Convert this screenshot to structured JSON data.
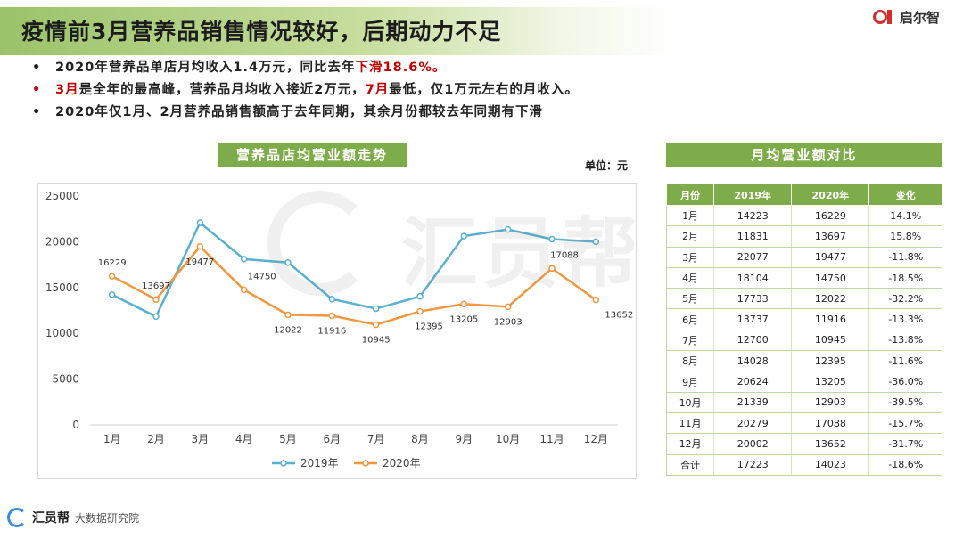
{
  "header": {
    "title": "疫情前3月营养品销售情况较好，后期动力不足",
    "logo_text": "启尔智"
  },
  "bullets": [
    {
      "parts": [
        {
          "text": "2020年营养品单店月均收入1.4万元，同比去年",
          "red": false
        },
        {
          "text": "下滑18.6%。",
          "red": true
        }
      ],
      "dot_red": false
    },
    {
      "parts": [
        {
          "text": "3月",
          "red": true
        },
        {
          "text": "是全年的最高峰，营养品月均收入接近2万元，",
          "red": false
        },
        {
          "text": "7月",
          "red": true
        },
        {
          "text": "最低，仅1万元左右的月收入。",
          "red": false
        }
      ],
      "dot_red": true
    },
    {
      "parts": [
        {
          "text": "2020年仅1月、2月营养品销售额高于去年同期，其余月份都较去年同期有下滑",
          "red": false
        }
      ],
      "dot_red": false
    }
  ],
  "chart_panel": {
    "title": "营养品店均营业额走势",
    "unit": "单位：元"
  },
  "table_panel": {
    "title": "月均营业额对比"
  },
  "chart_data": {
    "type": "line",
    "title": "营养品店均营业额走势",
    "categories": [
      "1月",
      "2月",
      "3月",
      "4月",
      "5月",
      "6月",
      "7月",
      "8月",
      "9月",
      "10月",
      "11月",
      "12月"
    ],
    "series": [
      {
        "name": "2019年",
        "color": "#5ab0cf",
        "values": [
          14223,
          11831,
          22077,
          18104,
          17733,
          13737,
          12700,
          14028,
          20624,
          21339,
          20279,
          20002
        ],
        "show_labels": false
      },
      {
        "name": "2020年",
        "color": "#f39640",
        "values": [
          16229,
          13697,
          19477,
          14750,
          12022,
          11916,
          10945,
          12395,
          13205,
          12903,
          17088,
          13652
        ],
        "show_labels": true
      }
    ],
    "yticks": [
      0,
      5000,
      10000,
      15000,
      20000,
      25000
    ],
    "ylim": [
      0,
      25000
    ],
    "grid": false,
    "legend": "bottom"
  },
  "table": {
    "headers": [
      "月份",
      "2019年",
      "2020年",
      "变化"
    ],
    "rows": [
      [
        "1月",
        "14223",
        "16229",
        "14.1%"
      ],
      [
        "2月",
        "11831",
        "13697",
        "15.8%"
      ],
      [
        "3月",
        "22077",
        "19477",
        "-11.8%"
      ],
      [
        "4月",
        "18104",
        "14750",
        "-18.5%"
      ],
      [
        "5月",
        "17733",
        "12022",
        "-32.2%"
      ],
      [
        "6月",
        "13737",
        "11916",
        "-13.3%"
      ],
      [
        "7月",
        "12700",
        "10945",
        "-13.8%"
      ],
      [
        "8月",
        "14028",
        "12395",
        "-11.6%"
      ],
      [
        "9月",
        "20624",
        "13205",
        "-36.0%"
      ],
      [
        "10月",
        "21339",
        "12903",
        "-39.5%"
      ],
      [
        "11月",
        "20279",
        "17088",
        "-15.7%"
      ],
      [
        "12月",
        "20002",
        "13652",
        "-31.7%"
      ],
      [
        "合计",
        "17223",
        "14023",
        "-18.6%"
      ]
    ]
  },
  "watermark": {
    "text": "汇员帮"
  },
  "footer": {
    "brand": "汇员帮",
    "sub": "大数据研究院"
  },
  "colors": {
    "accent_green": "#7fac4a",
    "alert_red": "#c00000"
  }
}
